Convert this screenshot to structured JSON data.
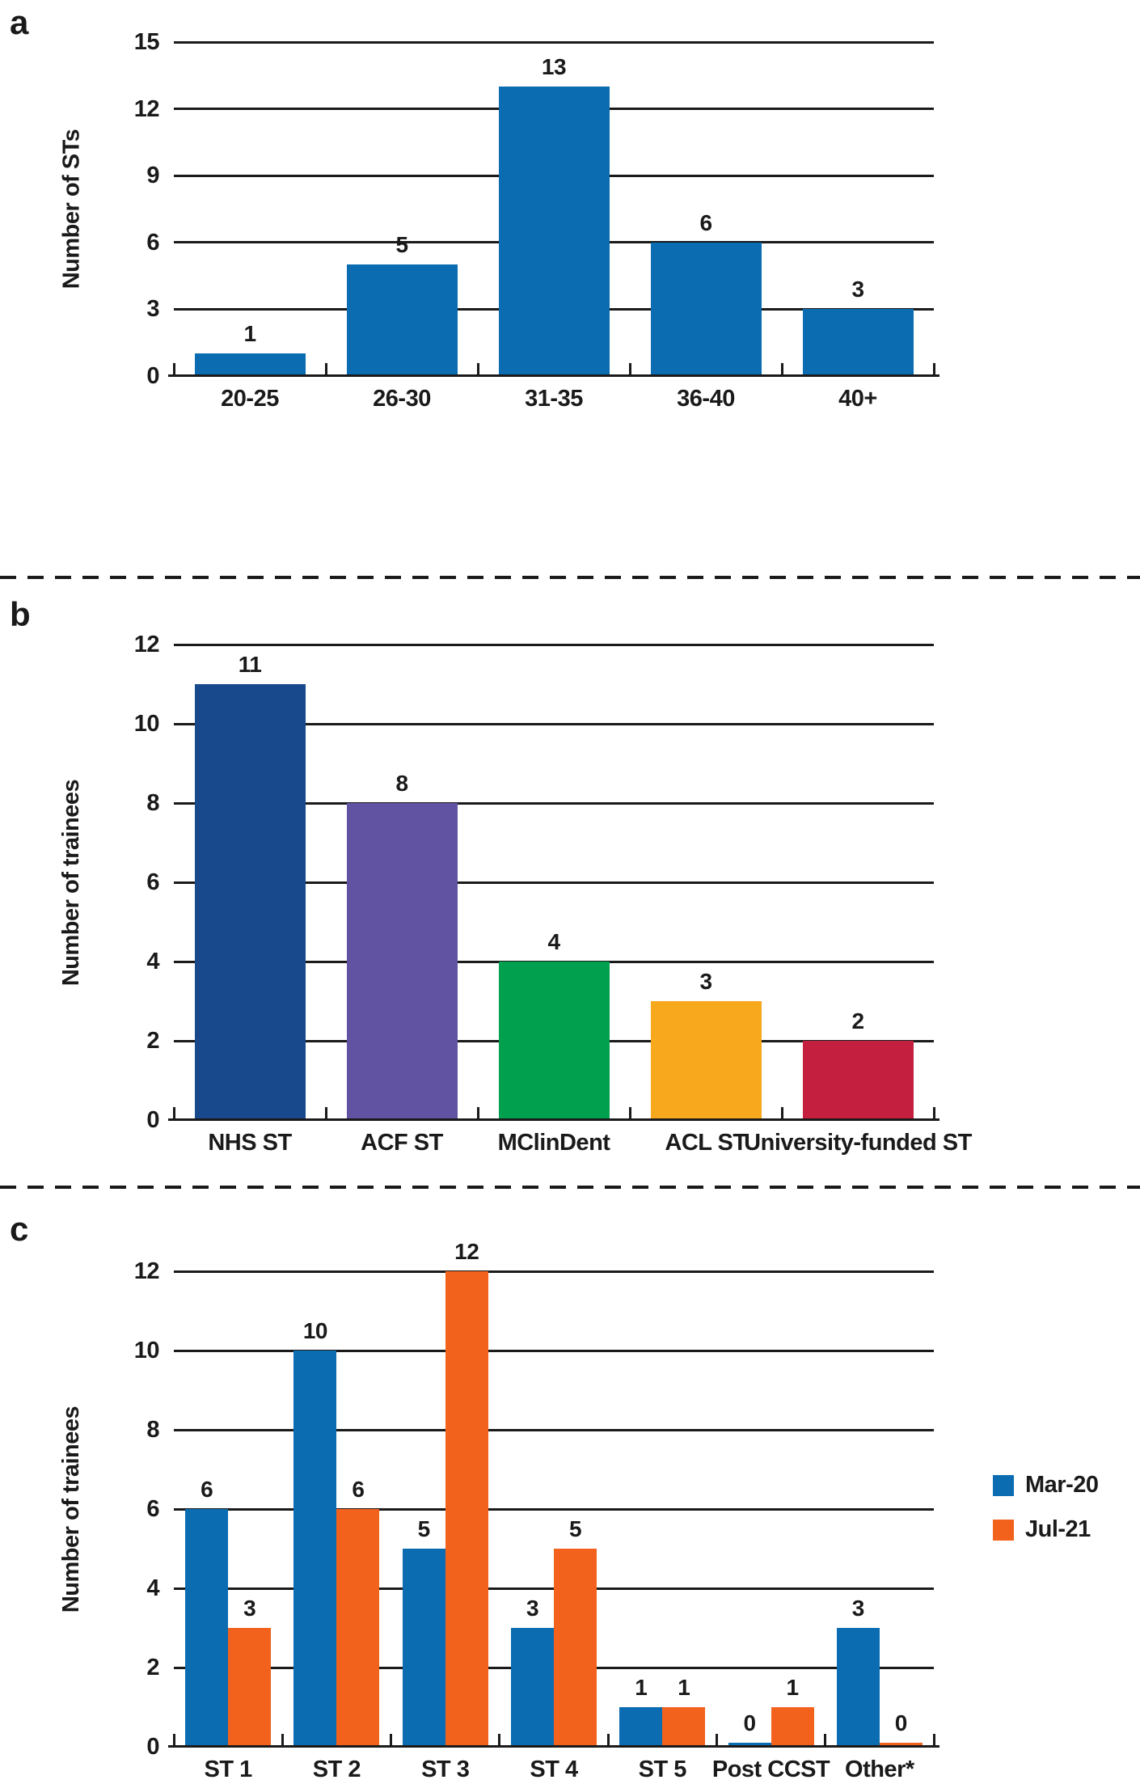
{
  "figure": {
    "background": "#ffffff",
    "text_color": "#1a1a1a",
    "grid_color": "#1a1a1a",
    "separator_style": "dashed"
  },
  "chart_data": [
    {
      "type": "bar",
      "panel_label": "a",
      "ylabel": "Number of STs",
      "xlabel": "",
      "categories": [
        "20-25",
        "26-30",
        "31-35",
        "36-40",
        "40+"
      ],
      "values": [
        1,
        5,
        13,
        6,
        3
      ],
      "bar_color": "#0b6cb1",
      "ylim": [
        0,
        15
      ],
      "ytick_interval": 3,
      "ytick_labels": [
        "0",
        "3",
        "6",
        "9",
        "12",
        "15"
      ],
      "grid": true,
      "value_labels_shown": true,
      "legend_position": "none"
    },
    {
      "type": "bar",
      "panel_label": "b",
      "ylabel": "Number of trainees",
      "xlabel": "",
      "categories": [
        "NHS ST",
        "ACF ST",
        "MClinDent",
        "ACL ST",
        "University-funded ST"
      ],
      "values": [
        11,
        8,
        4,
        3,
        2
      ],
      "bar_colors": [
        "#17498c",
        "#6153a1",
        "#00a04f",
        "#f8a81c",
        "#c51f40"
      ],
      "ylim": [
        0,
        12
      ],
      "ytick_interval": 2,
      "ytick_labels": [
        "0",
        "2",
        "4",
        "6",
        "8",
        "10",
        "12"
      ],
      "grid": true,
      "value_labels_shown": true,
      "legend_position": "none"
    },
    {
      "type": "bar",
      "panel_label": "c",
      "ylabel": "Number of trainees",
      "xlabel": "",
      "categories": [
        "ST 1",
        "ST 2",
        "ST 3",
        "ST 4",
        "ST 5",
        "Post CCST",
        "Other*"
      ],
      "series": [
        {
          "name": "Mar-20",
          "color": "#0b6cb1",
          "values": [
            6,
            10,
            5,
            3,
            1,
            0,
            3
          ]
        },
        {
          "name": "Jul-21",
          "color": "#f2621d",
          "values": [
            3,
            6,
            12,
            5,
            1,
            1,
            0
          ]
        }
      ],
      "ylim": [
        0,
        12
      ],
      "ytick_interval": 2,
      "ytick_labels": [
        "0",
        "2",
        "4",
        "6",
        "8",
        "10",
        "12"
      ],
      "grid": true,
      "value_labels_shown": true,
      "legend_position": "right"
    }
  ]
}
